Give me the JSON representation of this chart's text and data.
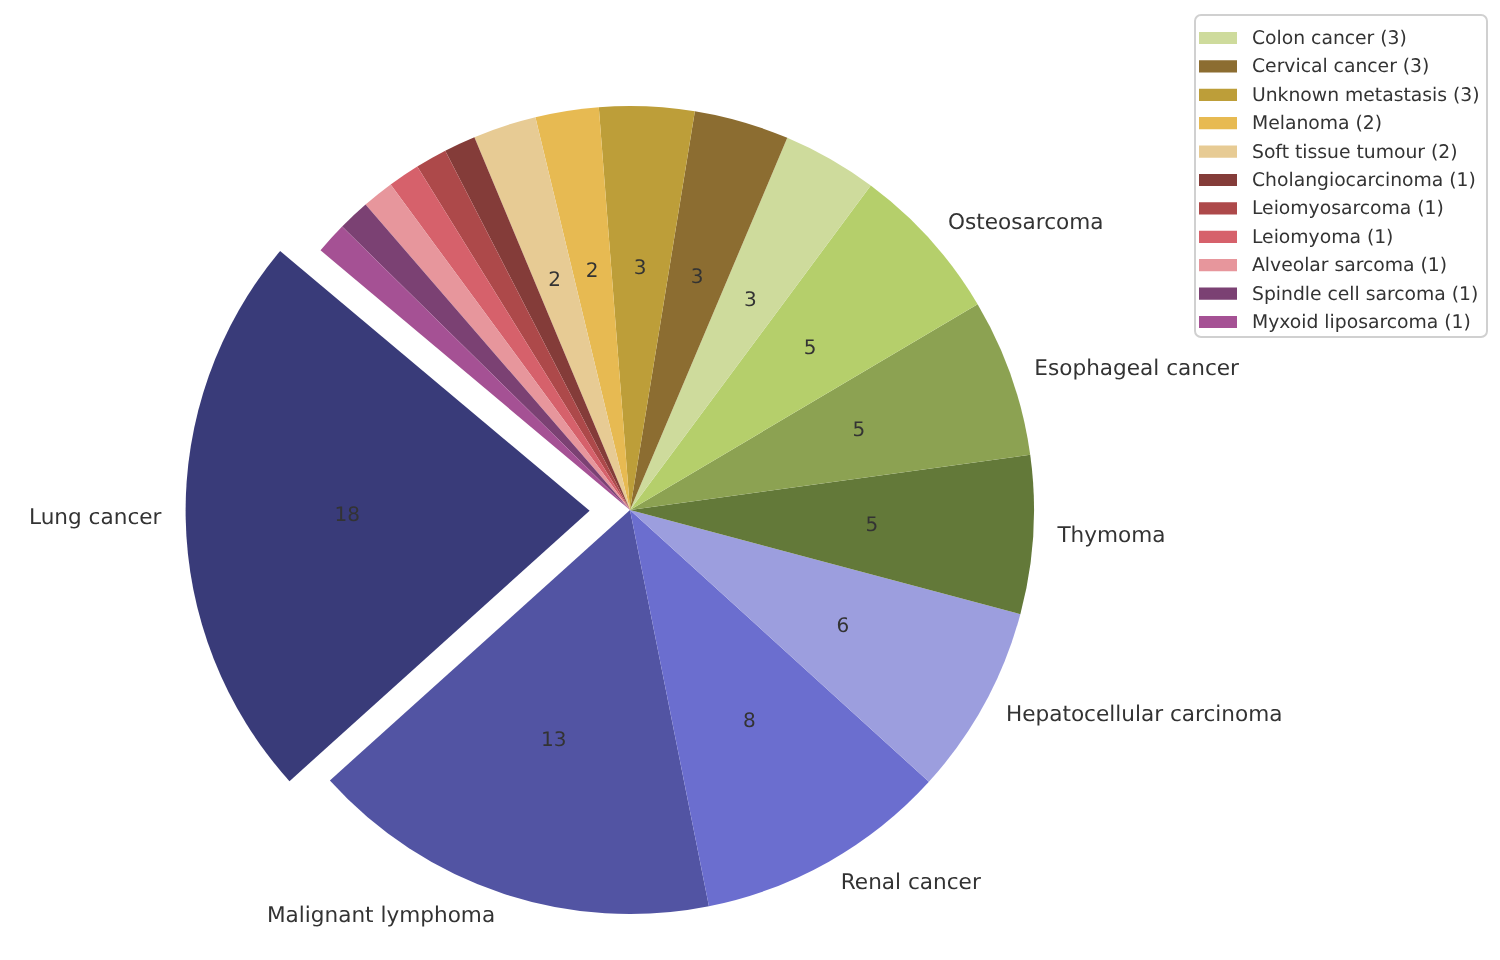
{
  "chart_data": {
    "type": "pie",
    "categories": [
      "Lung cancer",
      "Malignant lymphoma",
      "Renal cancer",
      "Hepatocellular carcinoma",
      "Thymoma",
      "Esophageal cancer",
      "Osteosarcoma",
      "Colon cancer (3)",
      "Cervical cancer (3)",
      "Unknown metastasis (3)",
      "Melanoma (2)",
      "Soft tissue tumour (2)",
      "Cholangiocarcinoma (1)",
      "Leiomyosarcoma (1)",
      "Leiomyoma (1)",
      "Alveolar sarcoma (1)",
      "Spindle cell sarcoma (1)",
      "Myxoid liposarcoma (1)"
    ],
    "values": [
      18,
      13,
      8,
      6,
      5,
      5,
      5,
      3,
      3,
      3,
      2,
      2,
      1,
      1,
      1,
      1,
      1,
      1
    ],
    "value_labels": [
      "18",
      "13",
      "8",
      "6",
      "5",
      "5",
      "5",
      "3",
      "3",
      "3",
      "2",
      "2",
      null,
      null,
      null,
      null,
      null,
      null
    ],
    "colors": [
      "#393b79",
      "#5254a3",
      "#6b6ecf",
      "#9c9ede",
      "#637939",
      "#8ca252",
      "#b5cf6b",
      "#cedb9c",
      "#8c6d31",
      "#bd9e39",
      "#e7ba52",
      "#e7cb94",
      "#843c39",
      "#ad494a",
      "#d6616b",
      "#e7969c",
      "#7b4173",
      "#a55194"
    ],
    "legend": "top right"
  }
}
